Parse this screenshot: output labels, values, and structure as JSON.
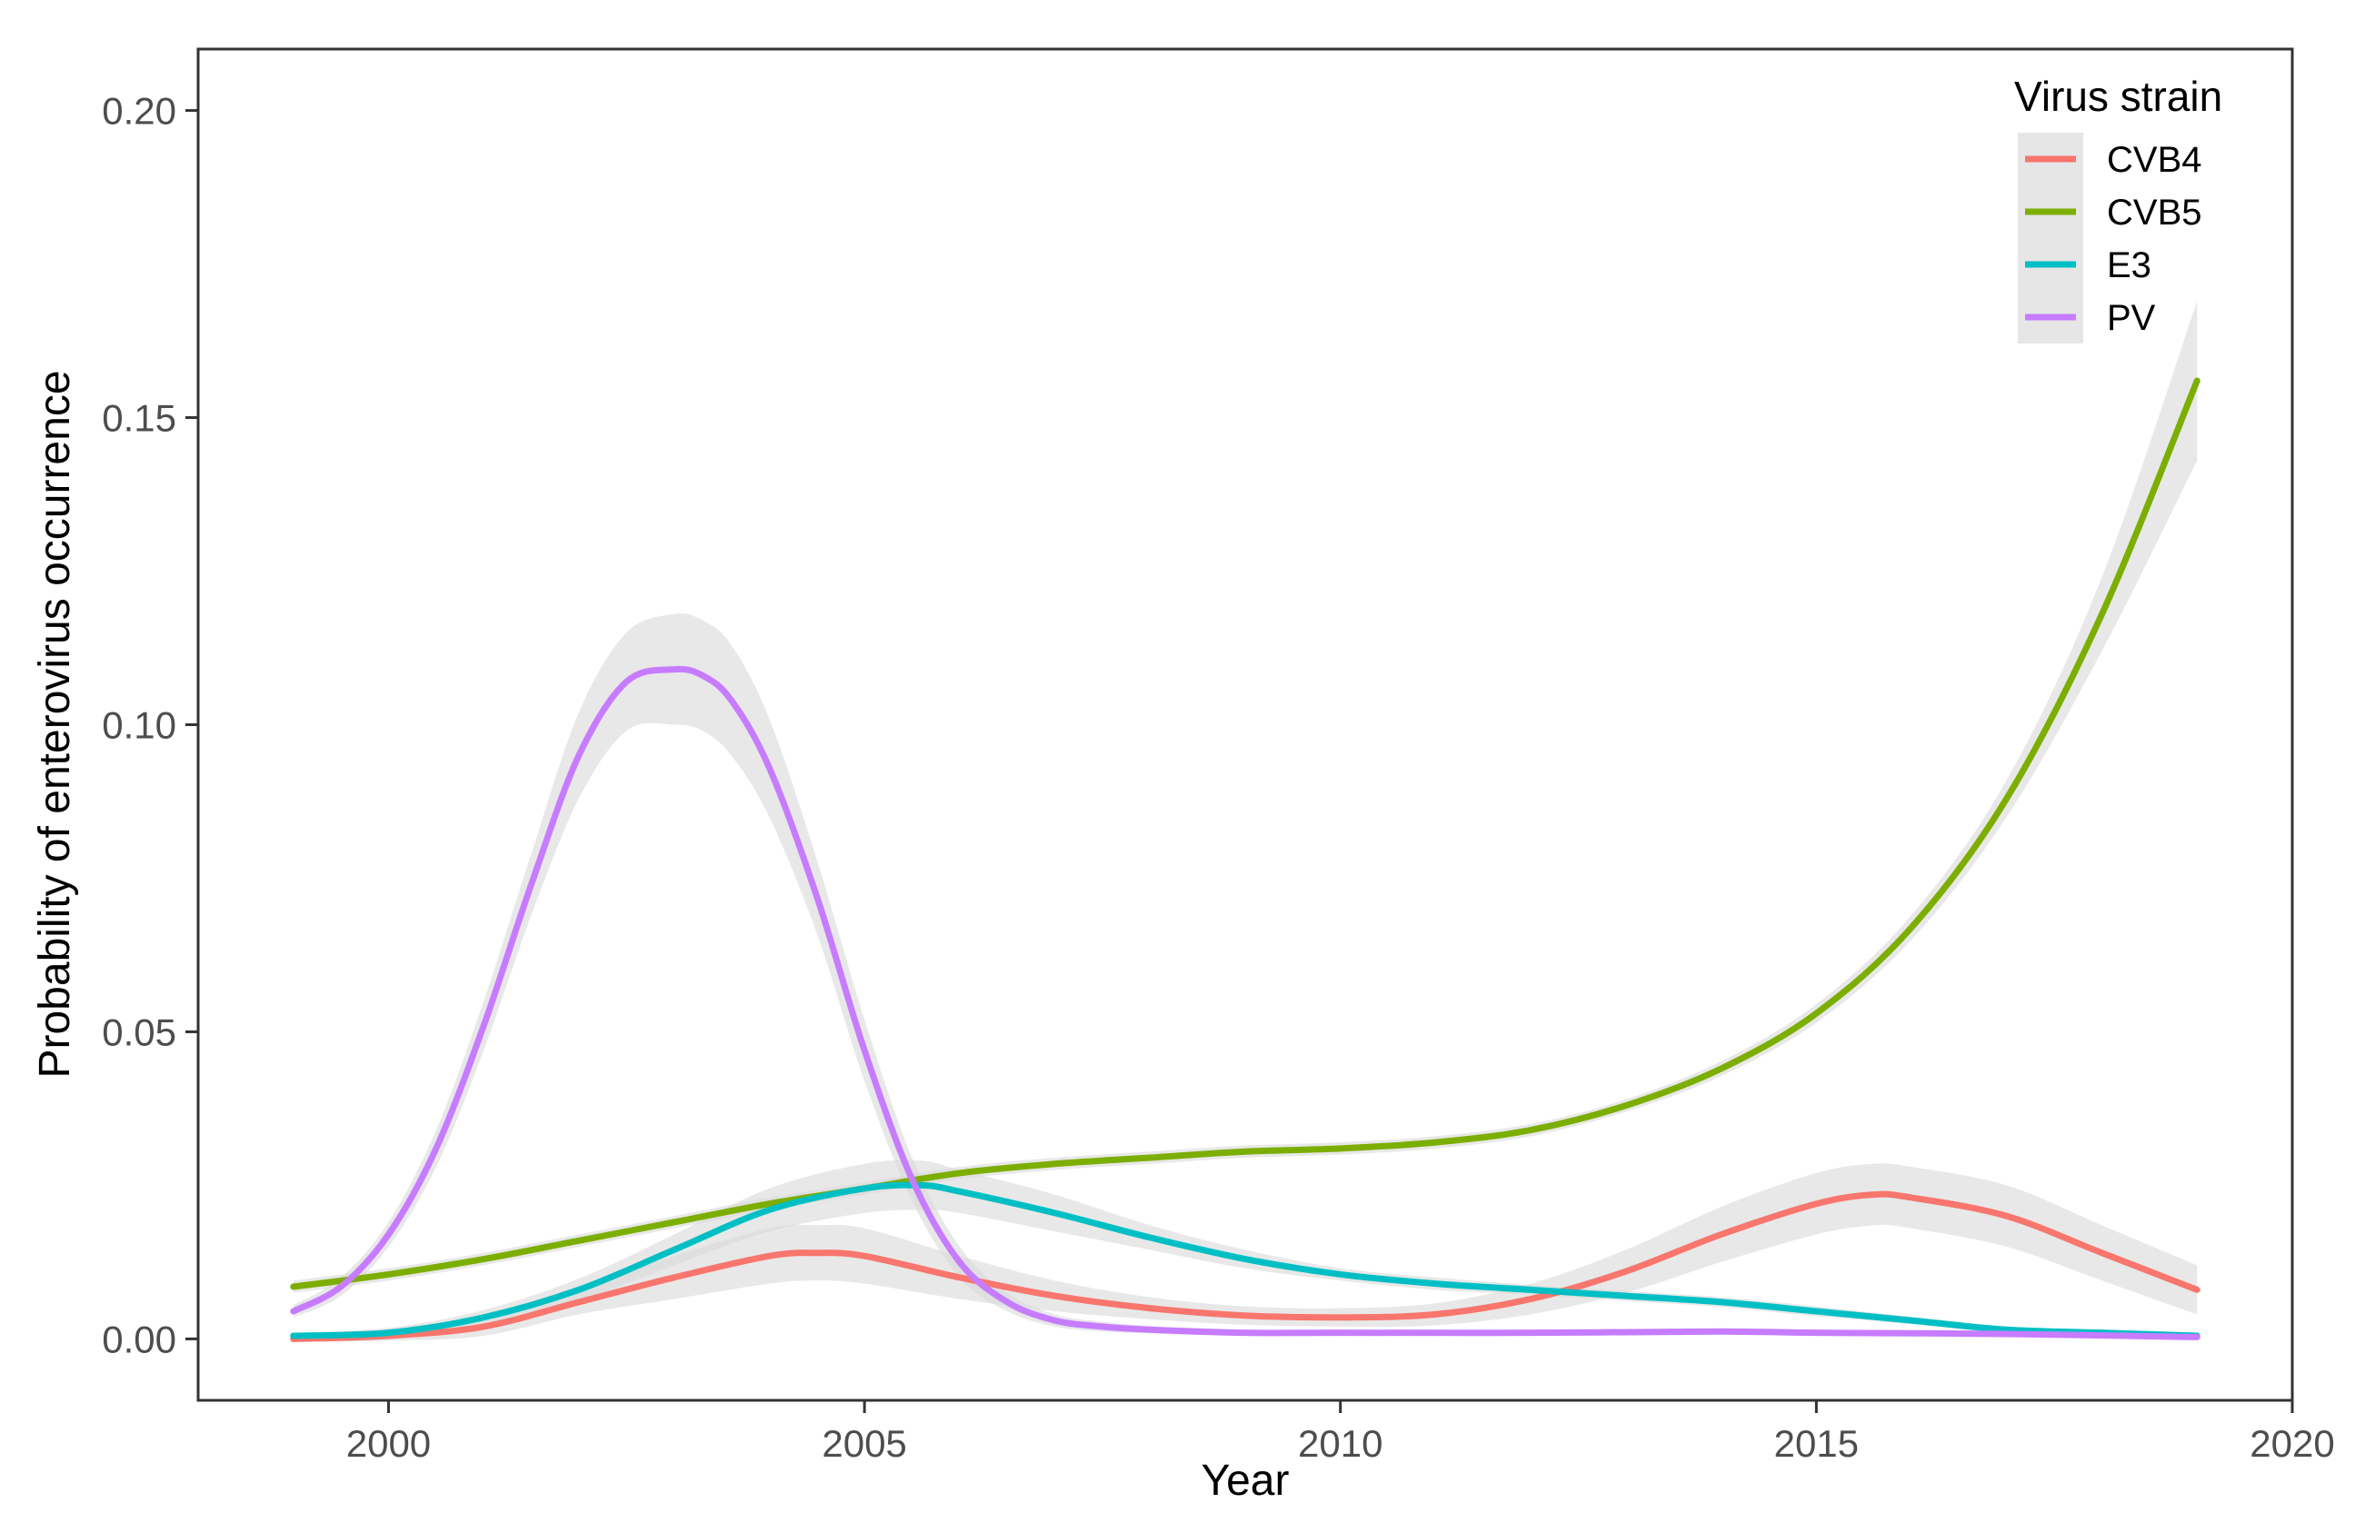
{
  "chart_data": {
    "type": "line",
    "xlabel": "Year",
    "ylabel": "Probability of enterovirus occurrence",
    "xlim": [
      1998,
      2020
    ],
    "ylim": [
      -0.01,
      0.21
    ],
    "x_ticks": [
      2000,
      2005,
      2010,
      2015,
      2020
    ],
    "y_ticks": [
      0.0,
      0.05,
      0.1,
      0.15,
      0.2
    ],
    "x_tick_labels": [
      "2000",
      "2005",
      "2010",
      "2015",
      "2020"
    ],
    "y_tick_labels": [
      "0.00",
      "0.05",
      "0.10",
      "0.15",
      "0.20"
    ],
    "grid": false,
    "legend": {
      "title": "Virus strain",
      "position": "top-right"
    },
    "series": [
      {
        "name": "CVB4",
        "color": "#F8766D",
        "x": [
          1999,
          2000,
          2001,
          2002,
          2003,
          2004,
          2004.5,
          2005,
          2006,
          2007,
          2008,
          2009,
          2010,
          2011,
          2012,
          2013,
          2014,
          2015,
          2015.6,
          2016,
          2017,
          2018,
          2019
        ],
        "y": [
          0.0,
          0.0005,
          0.002,
          0.006,
          0.01,
          0.0135,
          0.014,
          0.0135,
          0.01,
          0.007,
          0.005,
          0.0038,
          0.0035,
          0.004,
          0.0065,
          0.011,
          0.017,
          0.022,
          0.0235,
          0.023,
          0.02,
          0.014,
          0.008
        ],
        "ci": [
          0.0005,
          0.0008,
          0.0015,
          0.002,
          0.0035,
          0.0045,
          0.0045,
          0.0045,
          0.0035,
          0.0025,
          0.0018,
          0.0015,
          0.0015,
          0.0018,
          0.0025,
          0.0035,
          0.0045,
          0.005,
          0.005,
          0.005,
          0.005,
          0.0045,
          0.004
        ]
      },
      {
        "name": "CVB5",
        "color": "#7CAE00",
        "x": [
          1999,
          2000,
          2001,
          2002,
          2003,
          2004,
          2005,
          2006,
          2007,
          2008,
          2009,
          2010,
          2011,
          2012,
          2013,
          2014,
          2015,
          2016,
          2017,
          2018,
          2019
        ],
        "y": [
          0.0085,
          0.0105,
          0.013,
          0.016,
          0.019,
          0.022,
          0.0245,
          0.027,
          0.0285,
          0.0295,
          0.0305,
          0.031,
          0.032,
          0.034,
          0.038,
          0.044,
          0.053,
          0.067,
          0.088,
          0.118,
          0.156
        ],
        "ci": [
          0.001,
          0.001,
          0.001,
          0.001,
          0.001,
          0.001,
          0.001,
          0.001,
          0.001,
          0.001,
          0.001,
          0.001,
          0.001,
          0.001,
          0.001,
          0.0012,
          0.0015,
          0.002,
          0.003,
          0.006,
          0.013
        ]
      },
      {
        "name": "E3",
        "color": "#00BFC4",
        "x": [
          1999,
          2000,
          2001,
          2002,
          2003,
          2004,
          2005,
          2005.6,
          2006,
          2007,
          2008,
          2009,
          2010,
          2011,
          2012,
          2013,
          2014,
          2015,
          2016,
          2017,
          2018,
          2019
        ],
        "y": [
          0.0005,
          0.001,
          0.0035,
          0.008,
          0.0145,
          0.021,
          0.0245,
          0.025,
          0.024,
          0.0205,
          0.0165,
          0.013,
          0.0105,
          0.009,
          0.008,
          0.007,
          0.006,
          0.0045,
          0.003,
          0.0015,
          0.001,
          0.0005
        ],
        "ci": [
          0.0005,
          0.0008,
          0.0012,
          0.0018,
          0.0025,
          0.0035,
          0.004,
          0.004,
          0.0035,
          0.003,
          0.002,
          0.0015,
          0.001,
          0.001,
          0.0008,
          0.0008,
          0.0008,
          0.0008,
          0.0006,
          0.0005,
          0.0005,
          0.0004
        ]
      },
      {
        "name": "PV",
        "color": "#C77CFF",
        "x": [
          1999,
          1999.5,
          2000,
          2000.5,
          2001,
          2001.5,
          2002,
          2002.5,
          2003,
          2003.3,
          2003.6,
          2004,
          2004.5,
          2005,
          2005.5,
          2006,
          2006.5,
          2007,
          2007.5,
          2008,
          2009,
          2010,
          2012,
          2014,
          2015,
          2017,
          2019
        ],
        "y": [
          0.0045,
          0.0085,
          0.017,
          0.031,
          0.051,
          0.074,
          0.095,
          0.107,
          0.109,
          0.108,
          0.104,
          0.093,
          0.072,
          0.047,
          0.026,
          0.0125,
          0.006,
          0.003,
          0.002,
          0.0015,
          0.001,
          0.001,
          0.001,
          0.0012,
          0.001,
          0.0008,
          0.0003
        ],
        "ci": [
          0.001,
          0.0015,
          0.002,
          0.003,
          0.004,
          0.005,
          0.007,
          0.008,
          0.009,
          0.009,
          0.009,
          0.008,
          0.006,
          0.005,
          0.0035,
          0.0025,
          0.0015,
          0.001,
          0.0008,
          0.0006,
          0.0005,
          0.0004,
          0.0004,
          0.0004,
          0.0004,
          0.0004,
          0.0003
        ]
      }
    ]
  }
}
